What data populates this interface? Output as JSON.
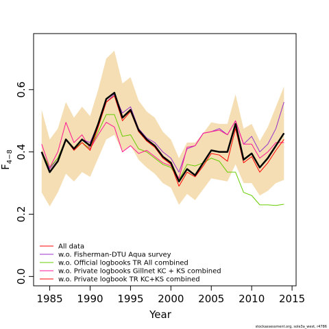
{
  "chart_data": {
    "type": "line",
    "xlabel": "Year",
    "ylabel_main": "F",
    "ylabel_sub": "4−8",
    "xlim": [
      1983,
      2015.5
    ],
    "ylim": [
      -0.03,
      0.78
    ],
    "xticks": [
      1985,
      1990,
      1995,
      2000,
      2005,
      2010,
      2015
    ],
    "yticks": [
      0.0,
      0.2,
      0.4,
      0.6
    ],
    "ytick_labels": [
      "0.0",
      "0.2",
      "0.4",
      "0.6"
    ],
    "grid": false,
    "legend_position": "bottom-left",
    "x": [
      1984,
      1985,
      1986,
      1987,
      1988,
      1989,
      1990,
      1991,
      1992,
      1993,
      1994,
      1995,
      1996,
      1997,
      1998,
      1999,
      2000,
      2001,
      2002,
      2003,
      2004,
      2005,
      2006,
      2007,
      2008,
      2009,
      2010,
      2011,
      2012,
      2013,
      2014
    ],
    "band": {
      "color": "#f5deb3",
      "lower": [
        0.27,
        0.225,
        0.27,
        0.33,
        0.305,
        0.335,
        0.32,
        0.38,
        0.44,
        0.455,
        0.4,
        0.42,
        0.375,
        0.35,
        0.33,
        0.3,
        0.285,
        0.23,
        0.265,
        0.245,
        0.28,
        0.315,
        0.31,
        0.305,
        0.36,
        0.3,
        0.3,
        0.26,
        0.275,
        0.3,
        0.31
      ],
      "upper": [
        0.535,
        0.44,
        0.475,
        0.56,
        0.51,
        0.545,
        0.515,
        0.6,
        0.7,
        0.725,
        0.62,
        0.64,
        0.565,
        0.53,
        0.51,
        0.465,
        0.44,
        0.38,
        0.43,
        0.43,
        0.46,
        0.495,
        0.49,
        0.49,
        0.585,
        0.475,
        0.49,
        0.435,
        0.48,
        0.545,
        0.61
      ]
    },
    "series": [
      {
        "name": "",
        "color": "#000000",
        "width": 2.5,
        "values": [
          0.4,
          0.335,
          0.37,
          0.44,
          0.41,
          0.44,
          0.42,
          0.49,
          0.57,
          0.59,
          0.51,
          0.535,
          0.47,
          0.44,
          0.42,
          0.385,
          0.365,
          0.305,
          0.345,
          0.325,
          0.365,
          0.405,
          0.4,
          0.4,
          0.49,
          0.375,
          0.395,
          0.35,
          0.38,
          0.42,
          0.46
        ]
      },
      {
        "name": "All data",
        "color": "#ff0000",
        "width": 1,
        "values": [
          0.4,
          0.335,
          0.37,
          0.44,
          0.41,
          0.44,
          0.42,
          0.49,
          0.57,
          0.59,
          0.51,
          0.535,
          0.47,
          0.44,
          0.42,
          0.385,
          0.365,
          0.305,
          0.345,
          0.325,
          0.365,
          0.405,
          0.4,
          0.4,
          0.49,
          0.375,
          0.395,
          0.35,
          0.38,
          0.42,
          0.46
        ]
      },
      {
        "name": "w.o. Fisherman-DTU Aqua survey",
        "color": "#9932cc",
        "width": 1,
        "values": [
          0.395,
          0.345,
          0.38,
          0.44,
          0.41,
          0.44,
          0.43,
          0.49,
          0.56,
          0.585,
          0.525,
          0.545,
          0.475,
          0.445,
          0.43,
          0.4,
          0.38,
          0.335,
          0.41,
          0.42,
          0.46,
          0.465,
          0.475,
          0.455,
          0.5,
          0.425,
          0.45,
          0.4,
          0.425,
          0.475,
          0.56
        ]
      },
      {
        "name": "w.o. Official logbooks TR All combined",
        "color": "#66cd00",
        "width": 1,
        "values": [
          0.4,
          0.35,
          0.38,
          0.44,
          0.41,
          0.43,
          0.41,
          0.465,
          0.52,
          0.52,
          0.45,
          0.455,
          0.41,
          0.4,
          0.38,
          0.36,
          0.35,
          0.31,
          0.36,
          0.355,
          0.365,
          0.38,
          0.37,
          0.335,
          0.335,
          0.27,
          0.26,
          0.23,
          0.23,
          0.228,
          0.232
        ]
      },
      {
        "name": "w.o. Private logbooks Gillnet KC + KS combined",
        "color": "#ff1493",
        "width": 1,
        "values": [
          0.425,
          0.35,
          0.4,
          0.495,
          0.43,
          0.455,
          0.41,
          0.455,
          0.495,
          0.48,
          0.4,
          0.42,
          0.395,
          0.405,
          0.385,
          0.365,
          0.355,
          0.315,
          0.415,
          0.42,
          0.46,
          0.465,
          0.47,
          0.455,
          0.5,
          0.425,
          0.425,
          0.38,
          0.4,
          0.43,
          0.43
        ]
      },
      {
        "name": "w.o. Private logbook TR KC+KS combined",
        "color": "#ff0000",
        "width": 1,
        "values": [
          0.4,
          0.335,
          0.37,
          0.44,
          0.405,
          0.43,
          0.405,
          0.48,
          0.56,
          0.58,
          0.5,
          0.53,
          0.465,
          0.435,
          0.415,
          0.38,
          0.36,
          0.29,
          0.335,
          0.32,
          0.355,
          0.395,
          0.39,
          0.37,
          0.475,
          0.365,
          0.385,
          0.335,
          0.365,
          0.405,
          0.44
        ]
      }
    ],
    "credit": "stockassessment.org, sole3a_west, r4786"
  }
}
